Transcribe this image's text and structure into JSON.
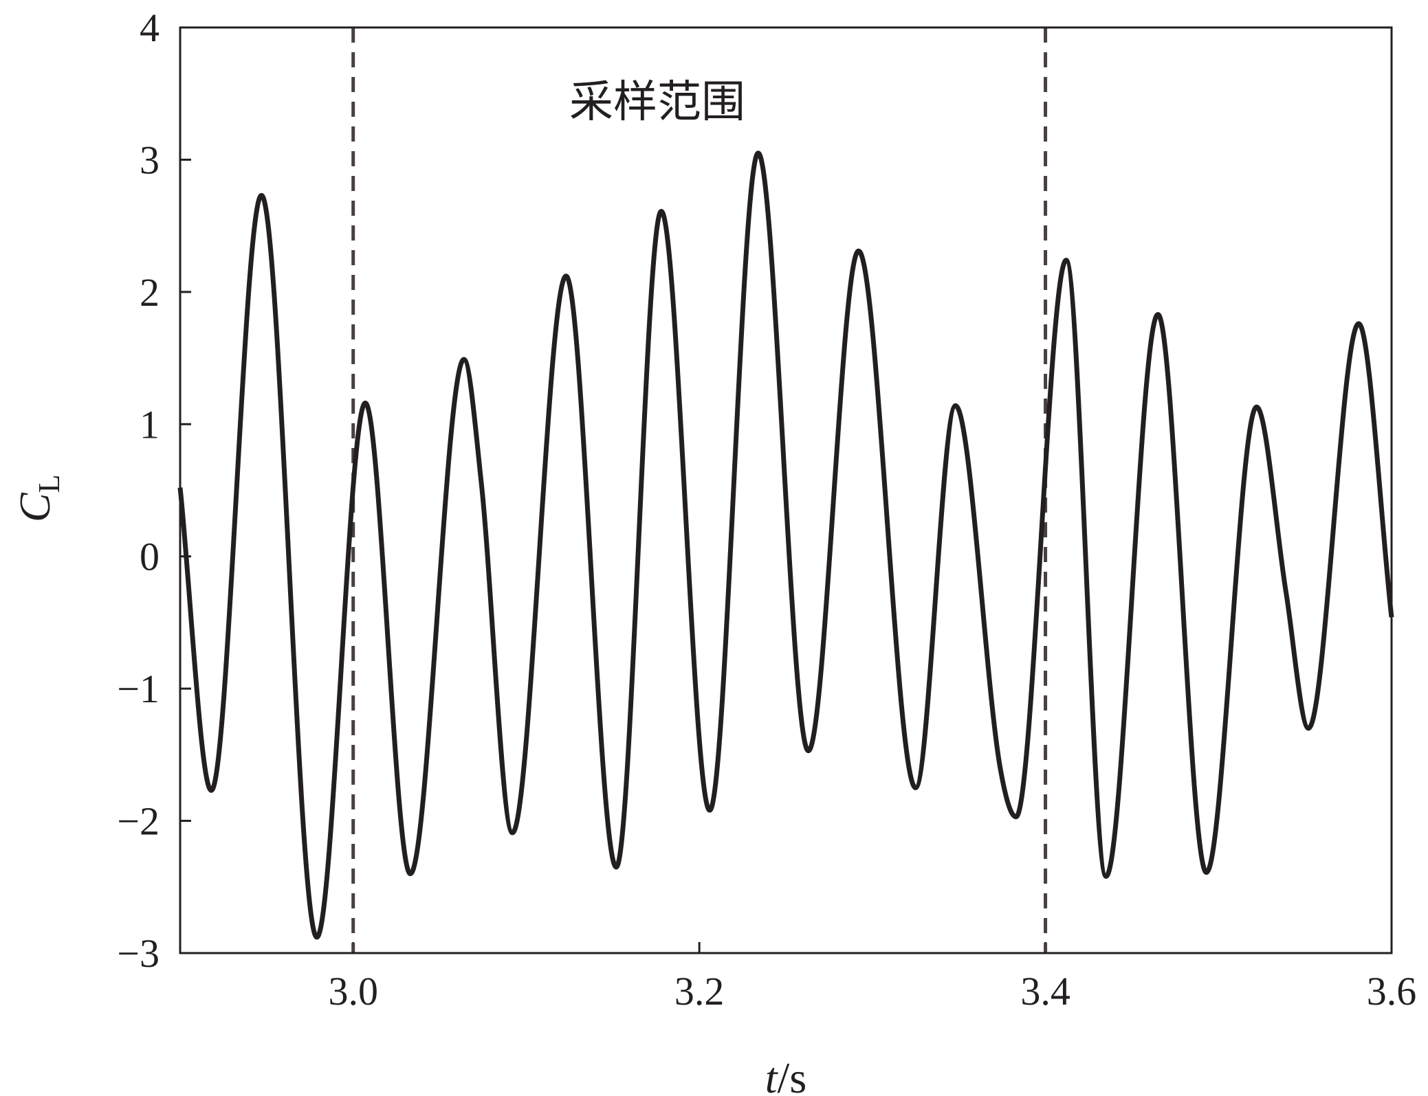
{
  "chart_data": {
    "type": "line",
    "annotation": "采样范围",
    "ylabel": {
      "main": "C",
      "sub": "L"
    },
    "xlabel": {
      "italic": "t",
      "rest": "/s"
    },
    "xlim": [
      2.9,
      3.6
    ],
    "ylim": [
      -3,
      4
    ],
    "xticks": [
      {
        "value": 3.0,
        "label": "3.0"
      },
      {
        "value": 3.2,
        "label": "3.2"
      },
      {
        "value": 3.4,
        "label": "3.4"
      },
      {
        "value": 3.6,
        "label": "3.6"
      }
    ],
    "yticks": [
      {
        "value": -3,
        "label": "−3"
      },
      {
        "value": -2,
        "label": "−2"
      },
      {
        "value": -1,
        "label": "−1"
      },
      0,
      1,
      2,
      3,
      4
    ],
    "vlines": [
      3.0,
      3.4
    ],
    "x": [
      2.9,
      2.918,
      2.947,
      2.979,
      3.007,
      3.033,
      3.064,
      3.074,
      3.092,
      3.123,
      3.152,
      3.178,
      3.206,
      3.234,
      3.263,
      3.292,
      3.325,
      3.348,
      3.374,
      3.383,
      3.412,
      3.435,
      3.465,
      3.493,
      3.522,
      3.539,
      3.552,
      3.581,
      3.6
    ],
    "series": [
      {
        "color": "#231f20",
        "values": [
          0.52,
          -1.77,
          2.73,
          -2.88,
          1.16,
          -2.4,
          1.49,
          0.56,
          -2.09,
          2.12,
          -2.35,
          2.61,
          -1.92,
          3.05,
          -1.47,
          2.31,
          -1.75,
          1.14,
          -1.61,
          -1.97,
          2.24,
          -2.42,
          1.83,
          -2.39,
          1.13,
          -0.27,
          -1.3,
          1.76,
          -0.46
        ]
      }
    ]
  }
}
